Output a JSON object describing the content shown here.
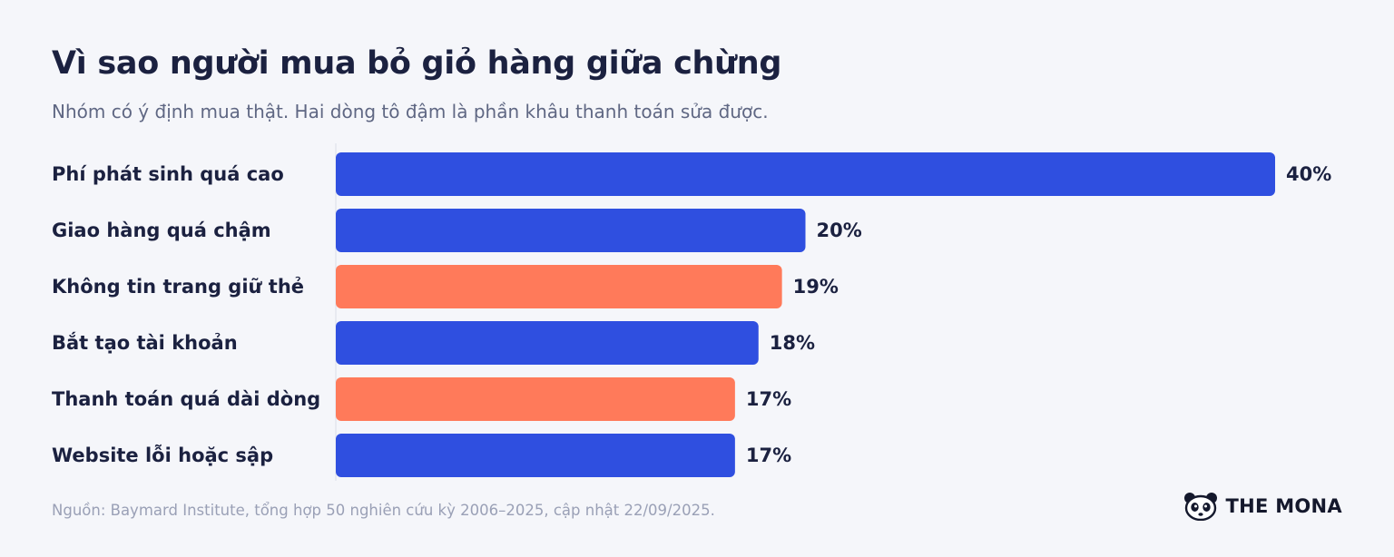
{
  "header": {
    "title": "Vì sao người mua bỏ giỏ hàng giữa chừng",
    "subtitle": "Nhóm có ý định mua thật. Hai dòng tô đậm là phần khâu thanh toán sửa được."
  },
  "chart_data": {
    "type": "bar",
    "orientation": "horizontal",
    "categories": [
      "Phí phát sinh quá cao",
      "Giao hàng quá chậm",
      "Không tin trang giữ thẻ",
      "Bắt tạo tài khoản",
      "Thanh toán quá dài dòng",
      "Website lỗi hoặc sập"
    ],
    "values": [
      40,
      20,
      19,
      18,
      17,
      17
    ],
    "value_labels": [
      "40%",
      "20%",
      "19%",
      "18%",
      "17%",
      "17%"
    ],
    "highlighted": [
      false,
      false,
      true,
      false,
      true,
      false
    ],
    "colors": {
      "default": "#2f4fe0",
      "highlight": "#ff7a5a"
    },
    "xlim": [
      0,
      40
    ],
    "grid": false
  },
  "footer": {
    "source": "Nguồn: Baymard Institute, tổng hợp 50 nghiên cứu kỳ 2006–2025, cập nhật 22/09/2025.",
    "brand": "THE MONA",
    "brand_icon": "panda-icon"
  }
}
